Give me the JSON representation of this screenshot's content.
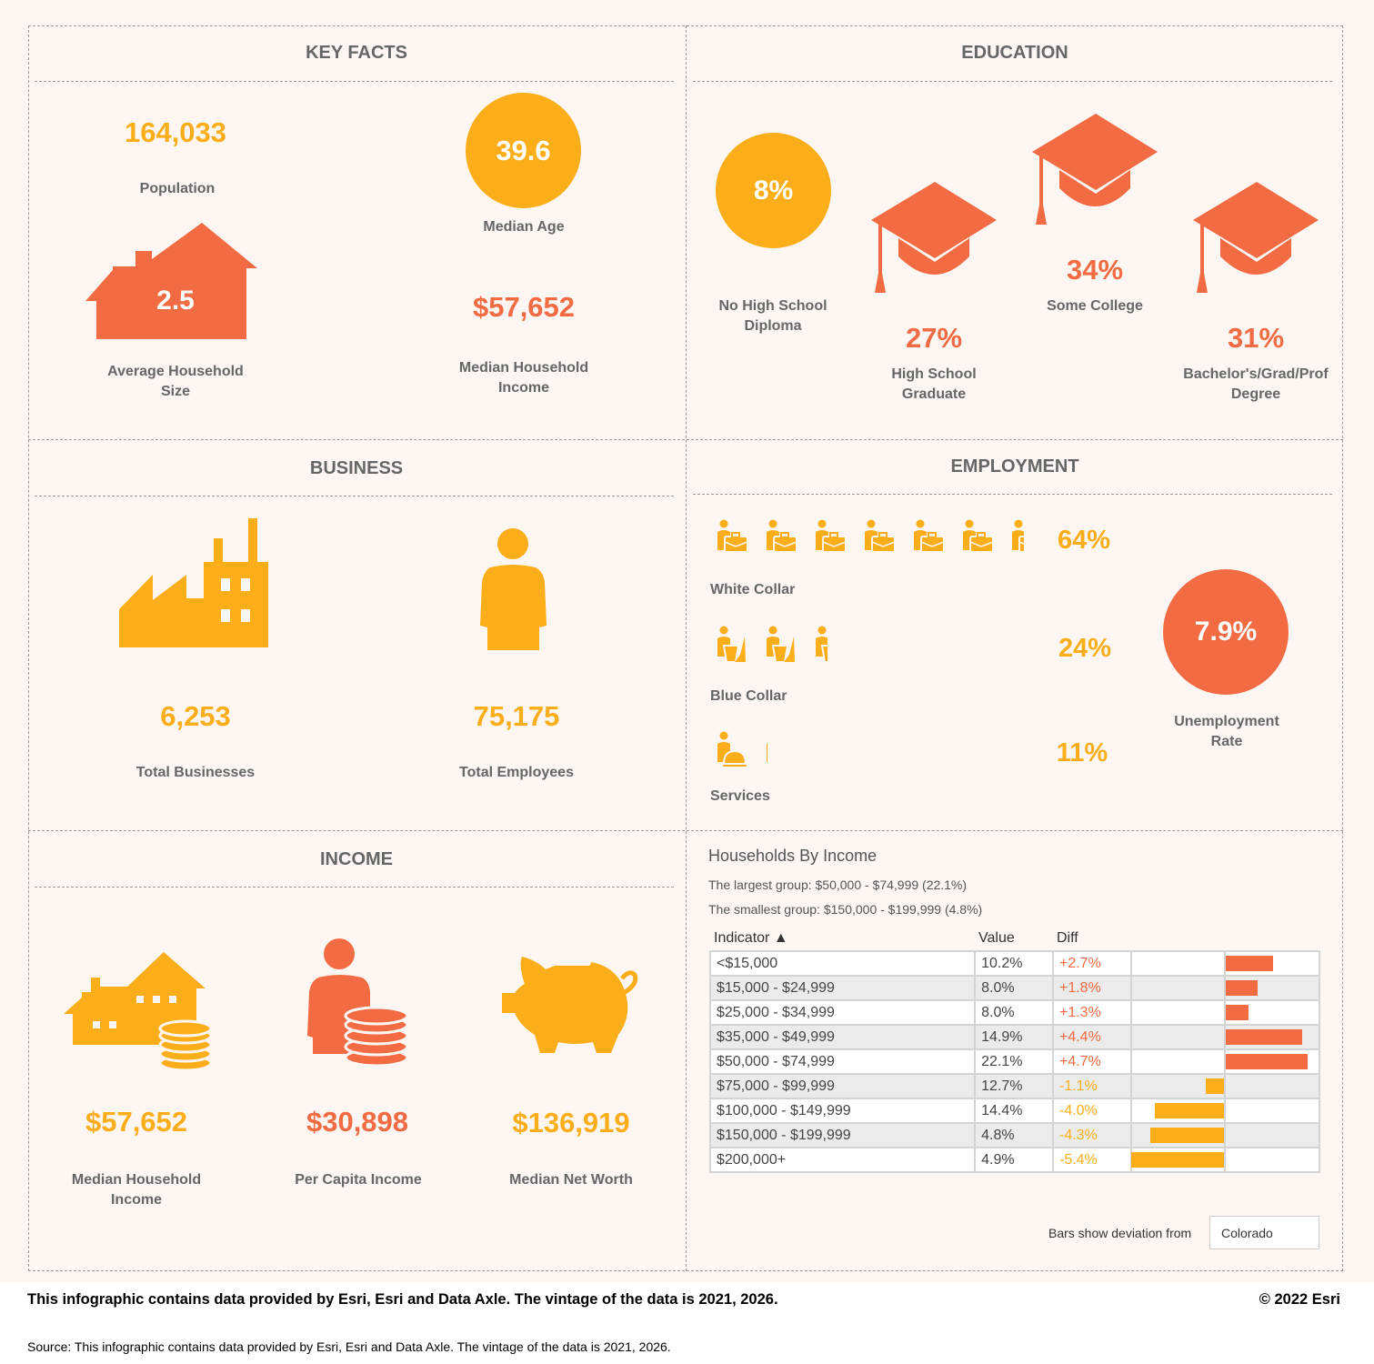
{
  "colors": {
    "orange": "#f26b43",
    "yellow": "#fbae1a",
    "text": "#666666"
  },
  "key_facts": {
    "title": "KEY FACTS",
    "population": "164,033",
    "population_label": "Population",
    "median_age": "39.6",
    "median_age_label": "Median Age",
    "household_size": "2.5",
    "household_size_label": "Average Household Size",
    "median_income": "$57,652",
    "median_income_label": "Median Household Income"
  },
  "education": {
    "title": "EDUCATION",
    "no_hs": "8%",
    "no_hs_label": "No High School Diploma",
    "hs": "27%",
    "hs_label": "High School Graduate",
    "some_college": "34%",
    "some_college_label": "Some College",
    "bachelors": "31%",
    "bachelors_label": "Bachelor's/Grad/Prof Degree"
  },
  "business": {
    "title": "BUSINESS",
    "total_businesses": "6,253",
    "total_businesses_label": "Total Businesses",
    "total_employees": "75,175",
    "total_employees_label": "Total Employees"
  },
  "employment": {
    "title": "EMPLOYMENT",
    "white_collar": "64%",
    "white_collar_label": "White Collar",
    "white_collar_fraction": 0.64,
    "blue_collar": "24%",
    "blue_collar_label": "Blue Collar",
    "blue_collar_fraction": 0.24,
    "services": "11%",
    "services_label": "Services",
    "services_fraction": 0.11,
    "unemployment": "7.9%",
    "unemployment_label": "Unemployment Rate"
  },
  "income": {
    "title": "INCOME",
    "median_household": "$57,652",
    "median_household_label": "Median Household Income",
    "per_capita": "$30,898",
    "per_capita_label": "Per Capita Income",
    "net_worth": "$136,919",
    "net_worth_label": "Median Net Worth"
  },
  "households": {
    "title": "Households By Income",
    "largest": "The largest group: $50,000 - $74,999 (22.1%)",
    "smallest": "The smallest group: $150,000 - $199,999 (4.8%)",
    "col_indicator": "Indicator ▲",
    "col_value": "Value",
    "col_diff": "Diff",
    "rows": [
      {
        "indicator": "<$15,000",
        "value": "10.2%",
        "diff": "+2.7%",
        "d": 2.7
      },
      {
        "indicator": "$15,000 - $24,999",
        "value": "8.0%",
        "diff": "+1.8%",
        "d": 1.8
      },
      {
        "indicator": "$25,000 - $34,999",
        "value": "8.0%",
        "diff": "+1.3%",
        "d": 1.3
      },
      {
        "indicator": "$35,000 - $49,999",
        "value": "14.9%",
        "diff": "+4.4%",
        "d": 4.4
      },
      {
        "indicator": "$50,000 - $74,999",
        "value": "22.1%",
        "diff": "+4.7%",
        "d": 4.7
      },
      {
        "indicator": "$75,000 - $99,999",
        "value": "12.7%",
        "diff": "-1.1%",
        "d": -1.1
      },
      {
        "indicator": "$100,000 - $149,999",
        "value": "14.4%",
        "diff": "-4.0%",
        "d": -4.0
      },
      {
        "indicator": "$150,000 - $199,999",
        "value": "4.8%",
        "diff": "-4.3%",
        "d": -4.3
      },
      {
        "indicator": "$200,000+",
        "value": "4.9%",
        "diff": "-5.4%",
        "d": -5.4
      }
    ],
    "deviation_label": "Bars show deviation from",
    "deviation_area": "Colorado"
  },
  "footer": {
    "note": "This infographic contains data provided by Esri, Esri and Data Axle. The vintage of the data is 2021, 2026.",
    "copyright": "© 2022 Esri",
    "source": "Source: This infographic contains data provided by Esri, Esri and Data Axle. The vintage of the data is 2021, 2026."
  }
}
